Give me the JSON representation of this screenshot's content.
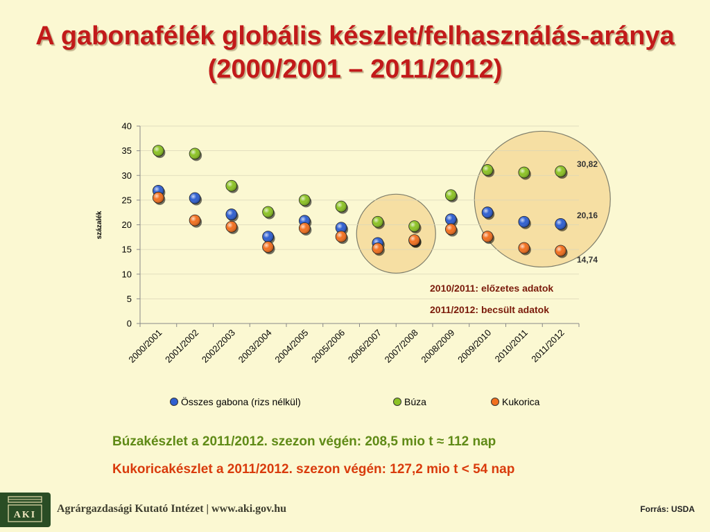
{
  "title": {
    "line1": "A gabonafélék globális készlet/felhasználás-aránya",
    "line2": "(2000/2001 – 2011/2012)"
  },
  "chart_data": {
    "type": "scatter",
    "ylabel": "százalék",
    "ylim": [
      0,
      40
    ],
    "yticks": [
      0,
      5,
      10,
      15,
      20,
      25,
      30,
      35,
      40
    ],
    "categories": [
      "2000/2001",
      "2001/2002",
      "2002/2003",
      "2003/2004",
      "2004/2005",
      "2005/2006",
      "2006/2007",
      "2007/2008",
      "2008/2009",
      "2009/2010",
      "2010/2011",
      "2011/2012"
    ],
    "series": [
      {
        "name": "Összes gabona (rizs nélkül)",
        "color": "#2f5fd0",
        "values": [
          26.9,
          25.4,
          22.1,
          17.6,
          20.8,
          19.4,
          16.3,
          16.8,
          21.1,
          22.5,
          20.6,
          20.16
        ]
      },
      {
        "name": "Búza",
        "color": "#8cc225",
        "values": [
          35.0,
          34.4,
          27.9,
          22.6,
          25.0,
          23.7,
          20.6,
          19.7,
          26.0,
          31.1,
          30.6,
          30.82
        ]
      },
      {
        "name": "Kukorica",
        "color": "#f2701f",
        "values": [
          25.5,
          20.9,
          19.6,
          15.5,
          19.3,
          17.6,
          15.2,
          16.9,
          19.1,
          17.6,
          15.3,
          14.74
        ]
      }
    ],
    "value_labels": [
      "30,82",
      "20,16",
      "14,74"
    ],
    "annotations": [
      "2010/2011: előzetes adatok",
      "2011/2012: becsült adatok"
    ],
    "legend_position": "bottom"
  },
  "notes": {
    "wheat": "Búzakészlet a 2011/2012. szezon végén: 208,5 mio t ≈ 112 nap",
    "corn": "Kukoricakészlet a 2011/2012. szezon végén: 127,2 mio t < 54 nap"
  },
  "footer": {
    "logo_text": "AKI",
    "institute": "Agrárgazdasági Kutató Intézet | www.aki.gov.hu",
    "source": "Forrás: USDA"
  }
}
